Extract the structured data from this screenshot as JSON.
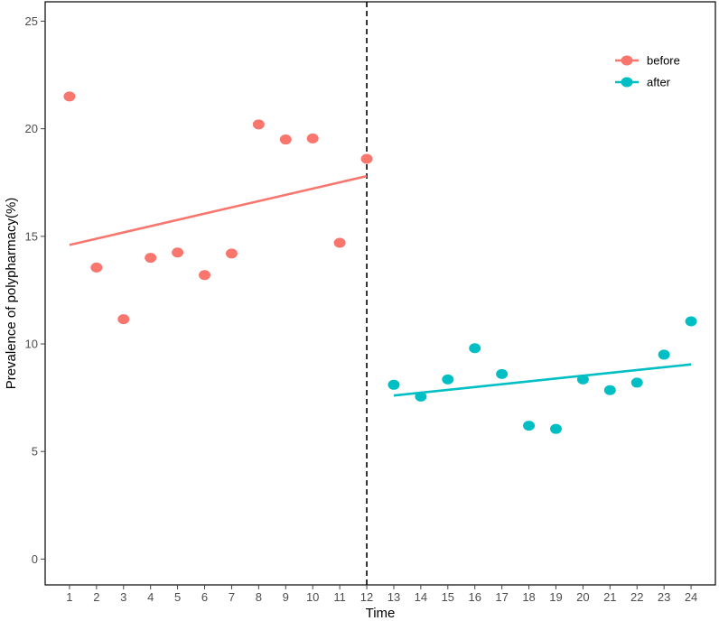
{
  "chart_data": {
    "type": "scatter",
    "xlabel": "Time",
    "ylabel": "Prevalence of polypharmacy(%)",
    "xlim": [
      0.1,
      24.9
    ],
    "ylim": [
      -1.2,
      25.9
    ],
    "x_ticks": [
      1,
      2,
      3,
      4,
      5,
      6,
      7,
      8,
      9,
      10,
      11,
      12,
      13,
      14,
      15,
      16,
      17,
      18,
      19,
      20,
      21,
      22,
      23,
      24
    ],
    "y_ticks": [
      0,
      5,
      10,
      15,
      20,
      25
    ],
    "grid": false,
    "legend_position": "top-right",
    "intervention_line": {
      "x": 12,
      "style": "dashed",
      "color": "#000000"
    },
    "series": [
      {
        "name": "before",
        "color": "#F8766D",
        "x": [
          1,
          2,
          3,
          4,
          5,
          6,
          7,
          8,
          9,
          10,
          11,
          12
        ],
        "y": [
          21.5,
          13.55,
          11.15,
          14.0,
          14.25,
          13.2,
          14.2,
          20.2,
          19.5,
          19.55,
          14.7,
          18.6
        ],
        "trend": {
          "x": [
            1,
            12
          ],
          "y": [
            14.6,
            17.8
          ]
        }
      },
      {
        "name": "after",
        "color": "#00BFC4",
        "x": [
          13,
          14,
          15,
          16,
          17,
          18,
          19,
          20,
          21,
          22,
          23,
          24
        ],
        "y": [
          8.1,
          7.55,
          8.35,
          9.8,
          8.6,
          6.2,
          6.05,
          8.35,
          7.85,
          8.2,
          9.5,
          11.05
        ],
        "trend": {
          "x": [
            13,
            24
          ],
          "y": [
            7.6,
            9.05
          ]
        }
      }
    ]
  }
}
